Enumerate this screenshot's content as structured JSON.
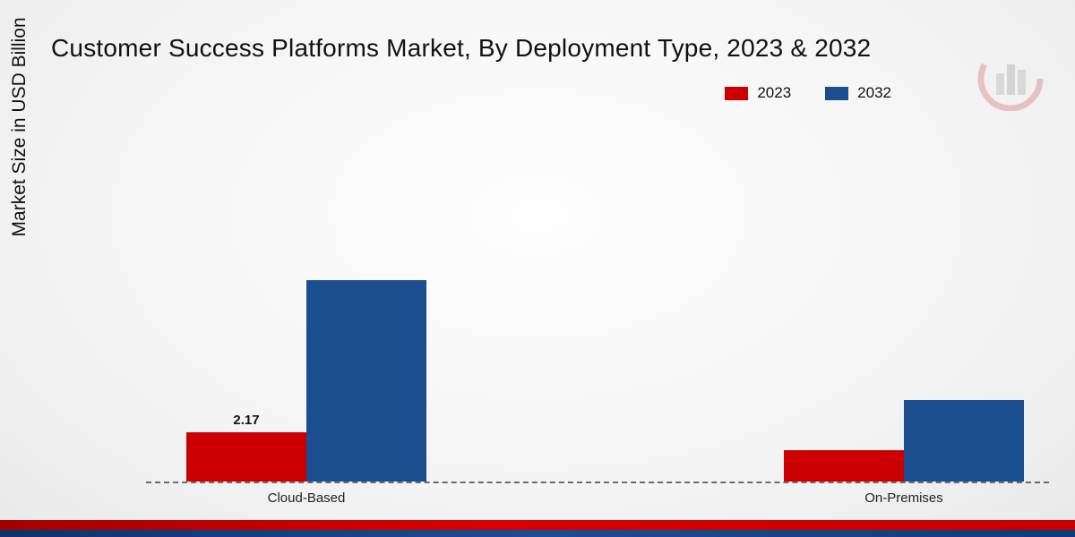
{
  "title": "Customer Success Platforms Market, By Deployment Type, 2023 & 2032",
  "y_axis_label": "Market Size in USD Billion",
  "legend": [
    {
      "label": "2023",
      "color": "#cc0001"
    },
    {
      "label": "2032",
      "color": "#1b4e8e"
    }
  ],
  "chart_data": {
    "type": "bar",
    "title": "Customer Success Platforms Market, By Deployment Type, 2023 & 2032",
    "categories": [
      "Cloud-Based",
      "On-Premises"
    ],
    "series": [
      {
        "name": "2023",
        "color": "#cc0001",
        "values": [
          2.17,
          1.4
        ]
      },
      {
        "name": "2032",
        "color": "#1b4e8e",
        "values": [
          8.9,
          3.6
        ]
      }
    ],
    "xlabel": "",
    "ylabel": "Market Size in USD Billion",
    "ylim": [
      0,
      10
    ],
    "grid": false,
    "legend_position": "top-right",
    "baseline_style": "dashed",
    "annotations": [
      {
        "series": "2023",
        "category": "Cloud-Based",
        "text": "2.17"
      }
    ]
  },
  "footer": {
    "strip_colors": [
      "#cc0001",
      "#1b4e8e"
    ]
  }
}
